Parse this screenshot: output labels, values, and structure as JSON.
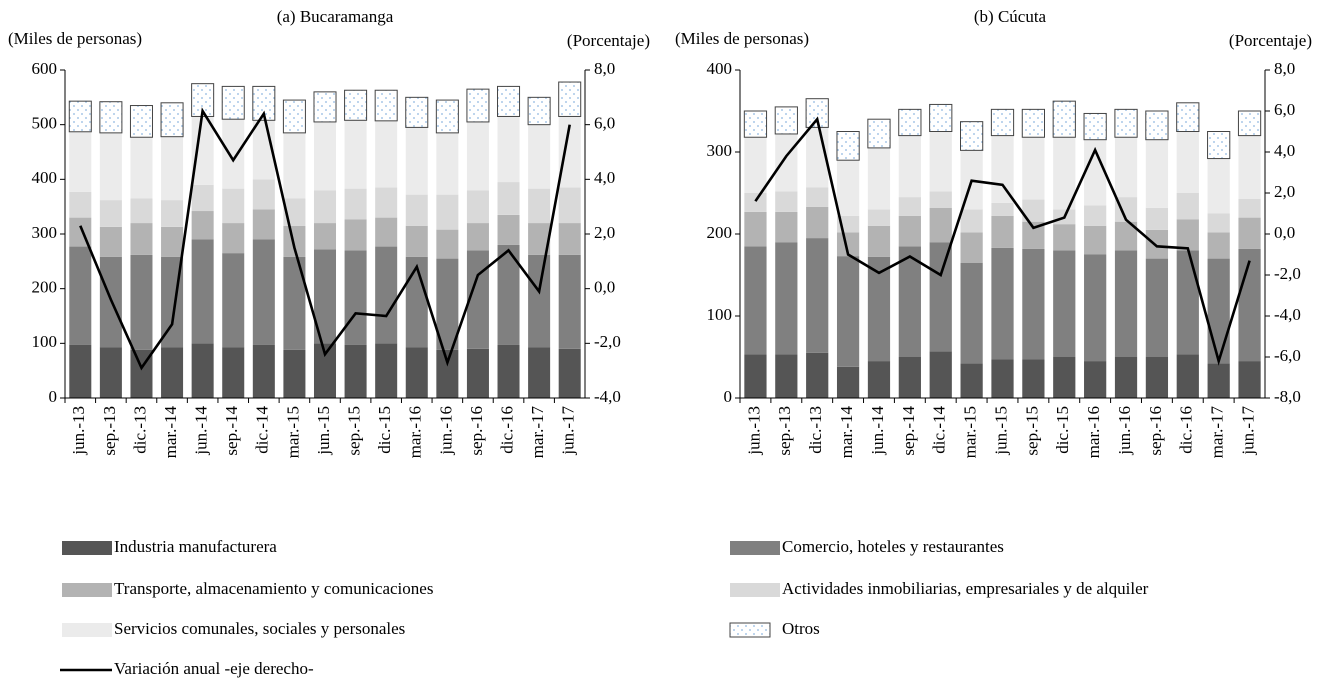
{
  "legend": [
    {
      "name": "Industria manufacturera",
      "color": "#555555"
    },
    {
      "name": "Comercio, hoteles y restaurantes",
      "color": "#808080"
    },
    {
      "name": "Transporte, almacenamiento y comunicaciones",
      "color": "#b3b3b3"
    },
    {
      "name": "Actividades inmobiliarias, empresariales y de alquiler",
      "color": "#d9d9d9"
    },
    {
      "name": "Servicios comunales, sociales y personales",
      "color": "#ebebeb"
    },
    {
      "name": "Otros",
      "color": "#8fb8e0"
    },
    {
      "name": "Variación anual -eje derecho-",
      "color": "#000000"
    }
  ],
  "chart_data": [
    {
      "type": "bar",
      "title": "(a) Bucaramanga",
      "y_label": "(Miles de personas)",
      "y2_label": "(Porcentaje)",
      "categories": [
        "jun.-13",
        "sep.-13",
        "dic.-13",
        "mar.-14",
        "jun.-14",
        "sep.-14",
        "dic.-14",
        "mar.-15",
        "jun.-15",
        "sep.-15",
        "dic.-15",
        "mar.-16",
        "jun.-16",
        "sep.-16",
        "dic.-16",
        "mar.-17",
        "jun.-17"
      ],
      "series": [
        {
          "color": "#555555",
          "values": [
            97,
            93,
            88,
            93,
            100,
            93,
            97,
            88,
            100,
            97,
            100,
            93,
            88,
            90,
            97,
            93,
            90
          ]
        },
        {
          "color": "#808080",
          "values": [
            180,
            165,
            174,
            165,
            190,
            172,
            193,
            170,
            172,
            173,
            177,
            165,
            167,
            180,
            183,
            169,
            172
          ]
        },
        {
          "color": "#b3b3b3",
          "values": [
            53,
            55,
            58,
            55,
            52,
            55,
            55,
            57,
            48,
            57,
            53,
            57,
            53,
            50,
            55,
            58,
            58
          ]
        },
        {
          "color": "#d9d9d9",
          "values": [
            47,
            49,
            45,
            49,
            48,
            63,
            55,
            50,
            60,
            56,
            55,
            57,
            64,
            60,
            60,
            63,
            65
          ]
        },
        {
          "color": "#ebebeb",
          "values": [
            110,
            123,
            112,
            116,
            125,
            127,
            108,
            120,
            125,
            125,
            122,
            123,
            113,
            125,
            120,
            117,
            130
          ]
        },
        {
          "color": "#8fb8e0",
          "values": [
            56,
            57,
            58,
            62,
            60,
            60,
            62,
            60,
            55,
            55,
            56,
            55,
            60,
            60,
            55,
            50,
            63
          ]
        },
        {
          "color": "#000000",
          "axis": "y2",
          "values": [
            2.3,
            -0.4,
            -2.9,
            -1.3,
            6.5,
            4.7,
            6.4,
            1.5,
            -2.4,
            -0.9,
            -1.0,
            0.8,
            -2.7,
            0.5,
            1.4,
            -0.1,
            6.0
          ]
        }
      ],
      "ylim": [
        0,
        600
      ],
      "yticks": [
        0,
        100,
        200,
        300,
        400,
        500,
        600
      ],
      "y2lim": [
        -4,
        8
      ],
      "y2ticks": [
        {
          "value": -4,
          "label": "-4,0"
        },
        {
          "value": -2,
          "label": "-2,0"
        },
        {
          "value": 0,
          "label": "0,0"
        },
        {
          "value": 2,
          "label": "2,0"
        },
        {
          "value": 4,
          "label": "4,0"
        },
        {
          "value": 6,
          "label": "6,0"
        },
        {
          "value": 8,
          "label": "8,0"
        }
      ]
    },
    {
      "type": "bar",
      "title": "(b) Cúcuta",
      "y_label": "(Miles de personas)",
      "y2_label": "(Porcentaje)",
      "categories": [
        "jun.-13",
        "sep.-13",
        "dic.-13",
        "mar.-14",
        "jun.-14",
        "sep.-14",
        "dic.-14",
        "mar.-15",
        "jun.-15",
        "sep.-15",
        "dic.-15",
        "mar.-16",
        "jun.-16",
        "sep.-16",
        "dic.-16",
        "mar.-17",
        "jun.-17"
      ],
      "series": [
        {
          "color": "#555555",
          "values": [
            53,
            53,
            55,
            38,
            45,
            50,
            57,
            42,
            47,
            47,
            50,
            45,
            50,
            50,
            53,
            42,
            45
          ]
        },
        {
          "color": "#808080",
          "values": [
            132,
            137,
            140,
            135,
            127,
            135,
            133,
            123,
            136,
            135,
            130,
            130,
            130,
            120,
            127,
            128,
            137
          ]
        },
        {
          "color": "#b3b3b3",
          "values": [
            42,
            37,
            38,
            29,
            38,
            37,
            42,
            37,
            39,
            33,
            32,
            35,
            35,
            35,
            38,
            32,
            38
          ]
        },
        {
          "color": "#d9d9d9",
          "values": [
            23,
            25,
            24,
            20,
            20,
            23,
            20,
            28,
            16,
            27,
            18,
            25,
            30,
            27,
            32,
            23,
            23
          ]
        },
        {
          "color": "#ebebeb",
          "values": [
            68,
            70,
            73,
            68,
            75,
            75,
            73,
            72,
            82,
            76,
            88,
            80,
            73,
            83,
            75,
            67,
            77
          ]
        },
        {
          "color": "#8fb8e0",
          "values": [
            32,
            33,
            35,
            35,
            35,
            32,
            33,
            35,
            32,
            34,
            44,
            32,
            34,
            35,
            35,
            33,
            30
          ]
        },
        {
          "color": "#000000",
          "axis": "y2",
          "values": [
            1.6,
            3.8,
            5.6,
            -1.0,
            -1.9,
            -1.1,
            -2.0,
            2.6,
            2.4,
            0.3,
            0.8,
            4.1,
            0.7,
            -0.6,
            -0.7,
            -6.2,
            -1.3
          ]
        }
      ],
      "ylim": [
        0,
        400
      ],
      "yticks": [
        0,
        100,
        200,
        300,
        400
      ],
      "y2lim": [
        -8,
        8
      ],
      "y2ticks": [
        {
          "value": -8,
          "label": "-8,0"
        },
        {
          "value": -6,
          "label": "-6,0"
        },
        {
          "value": -4,
          "label": "-4,0"
        },
        {
          "value": -2,
          "label": "-2,0"
        },
        {
          "value": 0,
          "label": "0,0"
        },
        {
          "value": 2,
          "label": "2,0"
        },
        {
          "value": 4,
          "label": "4,0"
        },
        {
          "value": 6,
          "label": "6,0"
        },
        {
          "value": 8,
          "label": "8,0"
        }
      ]
    }
  ]
}
